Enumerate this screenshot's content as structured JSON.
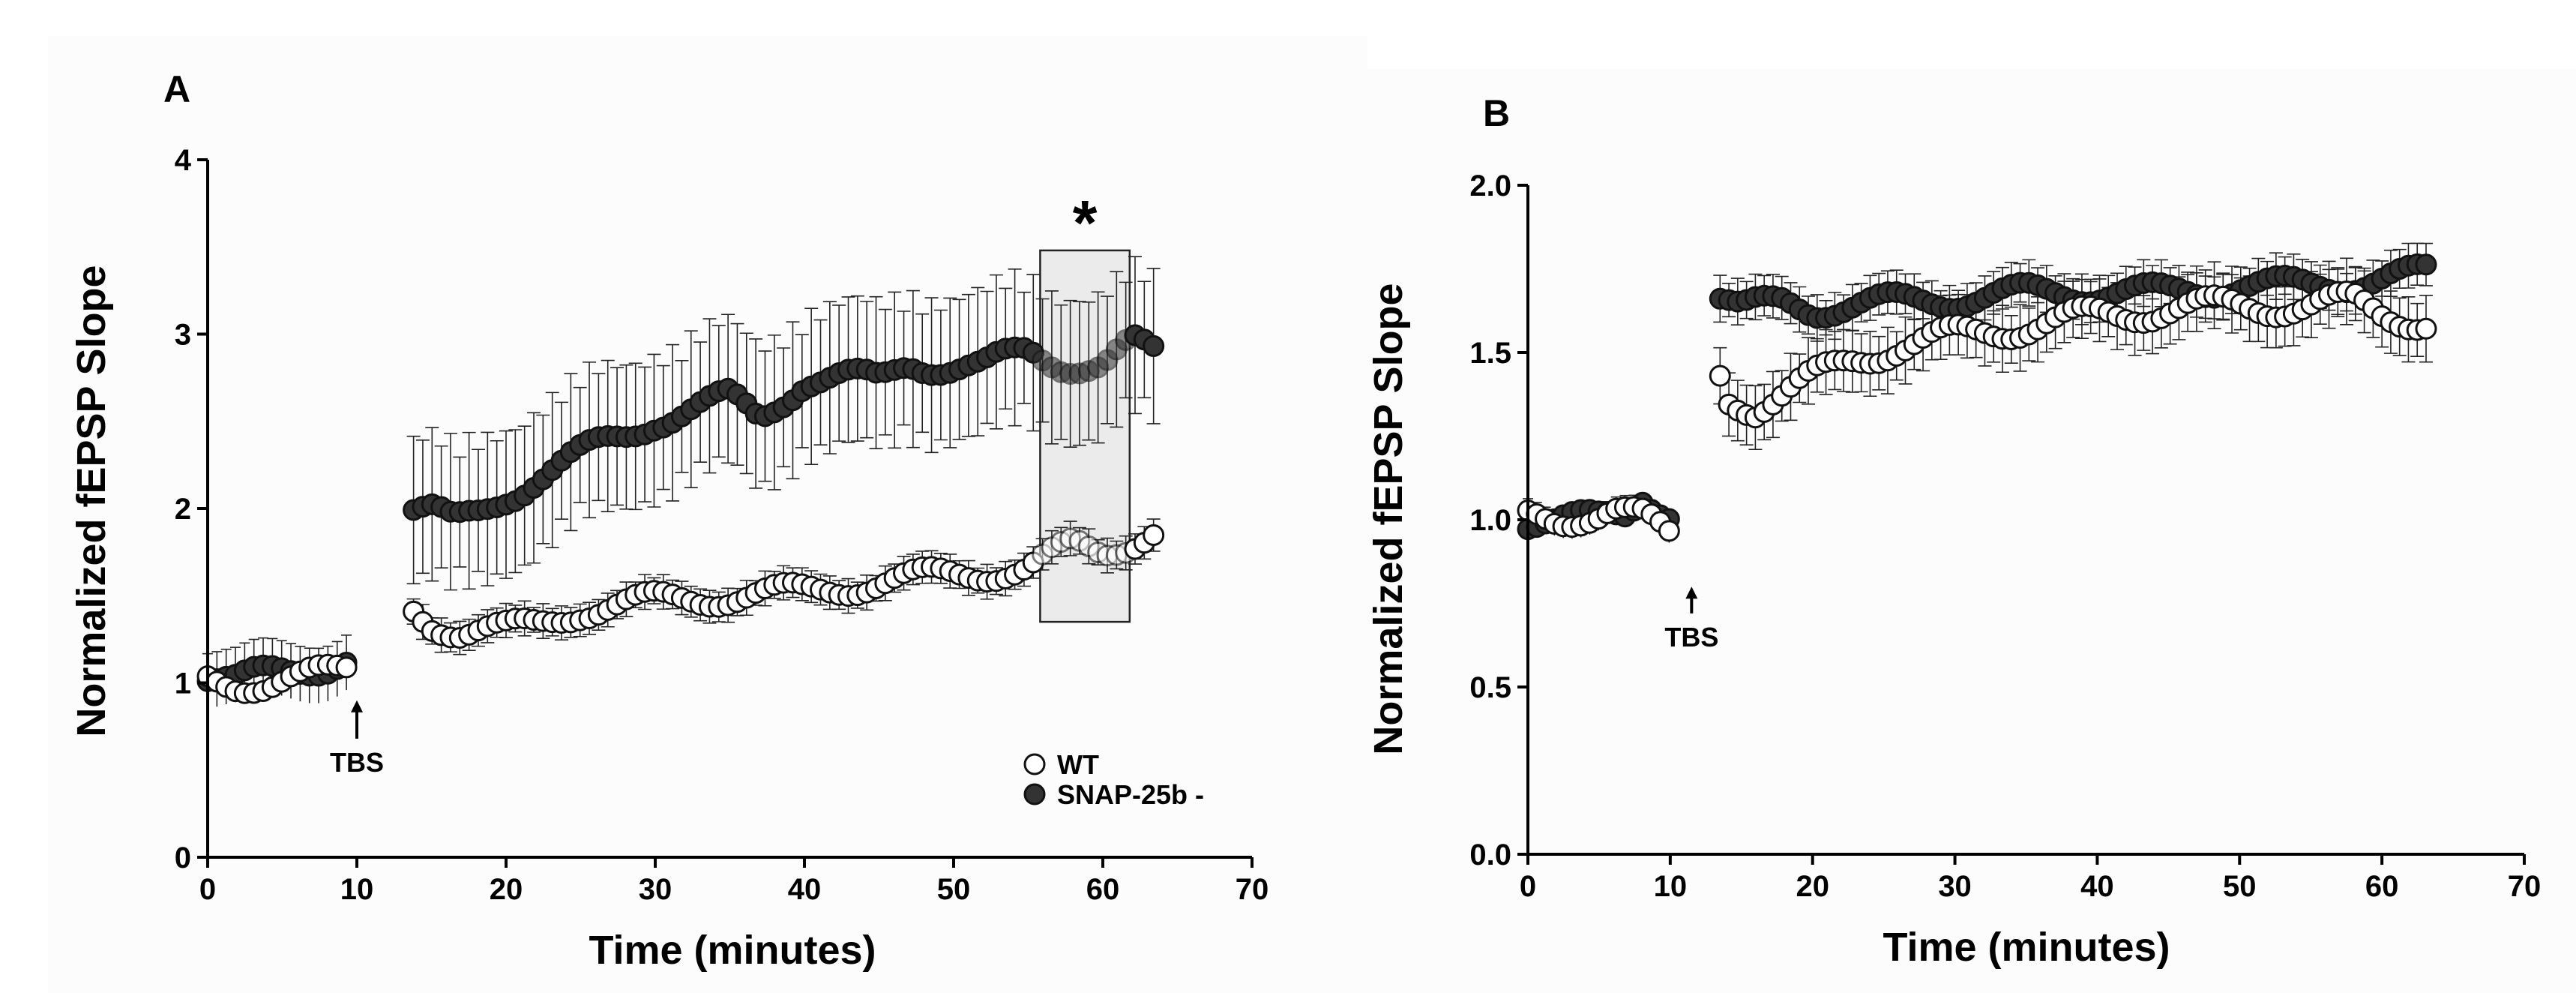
{
  "figure": {
    "panel_a_label": "A",
    "panel_b_label": "B",
    "significance_marker": "*",
    "stimulus_label": "TBS",
    "legend": {
      "wt": "WT",
      "mutant": "SNAP-25b -"
    },
    "colors": {
      "wt_fill": "#ffffff",
      "mutant_fill": "#333333",
      "highlight": "#e6e6e6"
    }
  },
  "chart_data": [
    {
      "panel": "A",
      "type": "scatter",
      "title": "",
      "xlabel": "Time (minutes)",
      "ylabel": "Normalized fEPSP Slope",
      "xlim": [
        0,
        70
      ],
      "ylim": [
        0,
        4
      ],
      "xticks": [
        0,
        10,
        20,
        30,
        40,
        50,
        60,
        70
      ],
      "yticks": [
        0,
        1,
        2,
        3,
        4
      ],
      "ytick_labels": [
        "0",
        "1",
        "2",
        "3",
        "4"
      ],
      "grid": false,
      "legend_position": "bottom-right",
      "annotations": [
        {
          "text": "TBS",
          "x": 10,
          "arrow": true
        },
        {
          "text": "*",
          "x": 58.8,
          "note": "significance over shaded window 56-62 min"
        }
      ],
      "highlight_window": [
        55.8,
        61.8
      ],
      "series": [
        {
          "name": "WT",
          "marker": "open-circle",
          "anchors": [
            [
              0,
              1.02
            ],
            [
              2,
              1.0
            ],
            [
              4,
              1.0
            ],
            [
              6,
              1.02
            ],
            [
              8,
              1.05
            ],
            [
              9.6,
              1.08
            ],
            [
              13.8,
              1.42
            ],
            [
              15,
              1.35
            ],
            [
              17,
              1.3
            ],
            [
              20,
              1.3
            ],
            [
              22,
              1.33
            ],
            [
              25,
              1.42
            ],
            [
              30,
              1.47
            ],
            [
              35,
              1.5
            ],
            [
              40,
              1.52
            ],
            [
              45,
              1.58
            ],
            [
              50,
              1.62
            ],
            [
              55,
              1.66
            ],
            [
              58,
              1.78
            ],
            [
              60,
              1.75
            ],
            [
              62,
              1.82
            ],
            [
              64,
              1.9
            ]
          ],
          "error_sd": 0.1,
          "error_range": [
            13.8,
            64
          ]
        },
        {
          "name": "SNAP-25b -",
          "marker": "filled-circle",
          "anchors": [
            [
              0,
              1.05
            ],
            [
              2,
              1.0
            ],
            [
              4,
              1.04
            ],
            [
              6,
              1.08
            ],
            [
              8,
              1.12
            ],
            [
              9.6,
              1.16
            ],
            [
              13.8,
              2.0
            ],
            [
              15,
              1.98
            ],
            [
              16.5,
              1.9
            ],
            [
              18,
              1.96
            ],
            [
              20,
              2.08
            ],
            [
              22,
              2.18
            ],
            [
              25,
              2.3
            ],
            [
              28,
              2.42
            ],
            [
              30,
              2.52
            ],
            [
              33,
              2.58
            ],
            [
              35,
              2.62
            ],
            [
              37,
              2.52
            ],
            [
              40,
              2.75
            ],
            [
              43,
              2.74
            ],
            [
              45,
              2.72
            ],
            [
              47,
              2.85
            ],
            [
              50,
              2.82
            ],
            [
              52,
              2.8
            ],
            [
              55,
              2.9
            ],
            [
              57,
              2.85
            ],
            [
              60,
              2.82
            ],
            [
              62,
              2.93
            ],
            [
              64,
              2.86
            ]
          ],
          "error_sd": 0.45,
          "error_range": [
            13.8,
            64
          ]
        }
      ]
    },
    {
      "panel": "B",
      "type": "scatter",
      "title": "",
      "xlabel": "Time (minutes)",
      "ylabel": "Normalized fEPSP Slope",
      "xlim": [
        0,
        70
      ],
      "ylim": [
        0,
        2
      ],
      "xticks": [
        0,
        10,
        20,
        30,
        40,
        50,
        60,
        70
      ],
      "yticks": [
        0,
        0.5,
        1,
        1.5,
        2
      ],
      "ytick_labels": [
        "0.0",
        "0.5",
        "1.0",
        "1.5",
        "2.0"
      ],
      "grid": false,
      "annotations": [
        {
          "text": "TBS",
          "x": 11.5,
          "arrow": true
        }
      ],
      "series": [
        {
          "name": "WT",
          "marker": "open-circle",
          "anchors": [
            [
              0,
              1.0
            ],
            [
              2,
              1.0
            ],
            [
              4,
              1.02
            ],
            [
              6,
              1.03
            ],
            [
              8,
              1.0
            ],
            [
              10,
              0.95
            ],
            [
              13.5,
              1.43
            ],
            [
              14,
              1.36
            ],
            [
              15,
              1.35
            ],
            [
              16,
              1.34
            ],
            [
              18,
              1.38
            ],
            [
              20,
              1.42
            ],
            [
              23,
              1.48
            ],
            [
              26,
              1.52
            ],
            [
              30,
              1.55
            ],
            [
              35,
              1.58
            ],
            [
              40,
              1.61
            ],
            [
              45,
              1.63
            ],
            [
              50,
              1.64
            ],
            [
              55,
              1.64
            ],
            [
              58,
              1.65
            ],
            [
              60,
              1.62
            ],
            [
              63.5,
              1.59
            ]
          ],
          "error_sd": 0.1,
          "error_range": [
            13.5,
            63.5
          ]
        },
        {
          "name": "SNAP-25b -",
          "marker": "filled-circle",
          "anchors": [
            [
              0,
              1.0
            ],
            [
              3,
              1.0
            ],
            [
              5,
              1.0
            ],
            [
              7,
              1.02
            ],
            [
              8,
              1.08
            ],
            [
              10,
              1.02
            ],
            [
              13.5,
              1.67
            ],
            [
              15,
              1.63
            ],
            [
              18,
              1.65
            ],
            [
              20,
              1.63
            ],
            [
              25,
              1.65
            ],
            [
              30,
              1.66
            ],
            [
              35,
              1.68
            ],
            [
              40,
              1.68
            ],
            [
              45,
              1.68
            ],
            [
              50,
              1.7
            ],
            [
              55,
              1.7
            ],
            [
              60,
              1.72
            ],
            [
              63.5,
              1.74
            ]
          ],
          "error_sd": 0.07,
          "error_range": [
            13.5,
            63.5
          ]
        }
      ]
    }
  ]
}
